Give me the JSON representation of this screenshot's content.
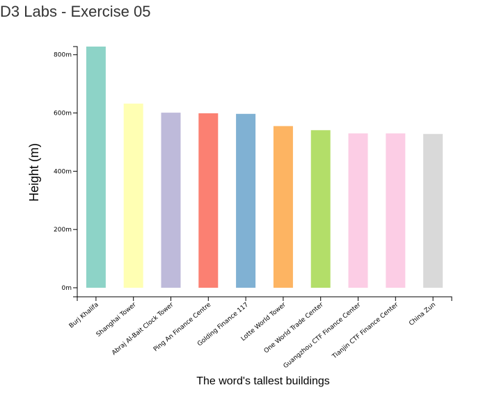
{
  "page": {
    "title": "D3 Labs - Exercise 05"
  },
  "chart_data": {
    "type": "bar",
    "xlabel": "The word's tallest buildings",
    "ylabel": "Height (m)",
    "ylim": [
      0,
      828
    ],
    "y_ticks": [
      0,
      200,
      400,
      600,
      800
    ],
    "y_tick_labels": [
      "0m",
      "200m",
      "400m",
      "600m",
      "800m"
    ],
    "categories": [
      "Burj Khalifa",
      "Shanghai Tower",
      "Abraj Al-Bait Clock Tower",
      "Ping An Finance Centre",
      "Golding Finance 117",
      "Lotte World Tower",
      "One World Trade Center",
      "Guangzhou CTF Finance Center",
      "Tianjin CTF Finance Center",
      "China Zun"
    ],
    "values": [
      828,
      632,
      601,
      599,
      597,
      555,
      541,
      530,
      530,
      528
    ],
    "colors": [
      "#8dd3c7",
      "#ffffb3",
      "#bebada",
      "#fb8072",
      "#80b1d3",
      "#fdb462",
      "#b3de69",
      "#fccde5",
      "#fccde5",
      "#d9d9d9"
    ],
    "grid": false,
    "legend": "none"
  }
}
